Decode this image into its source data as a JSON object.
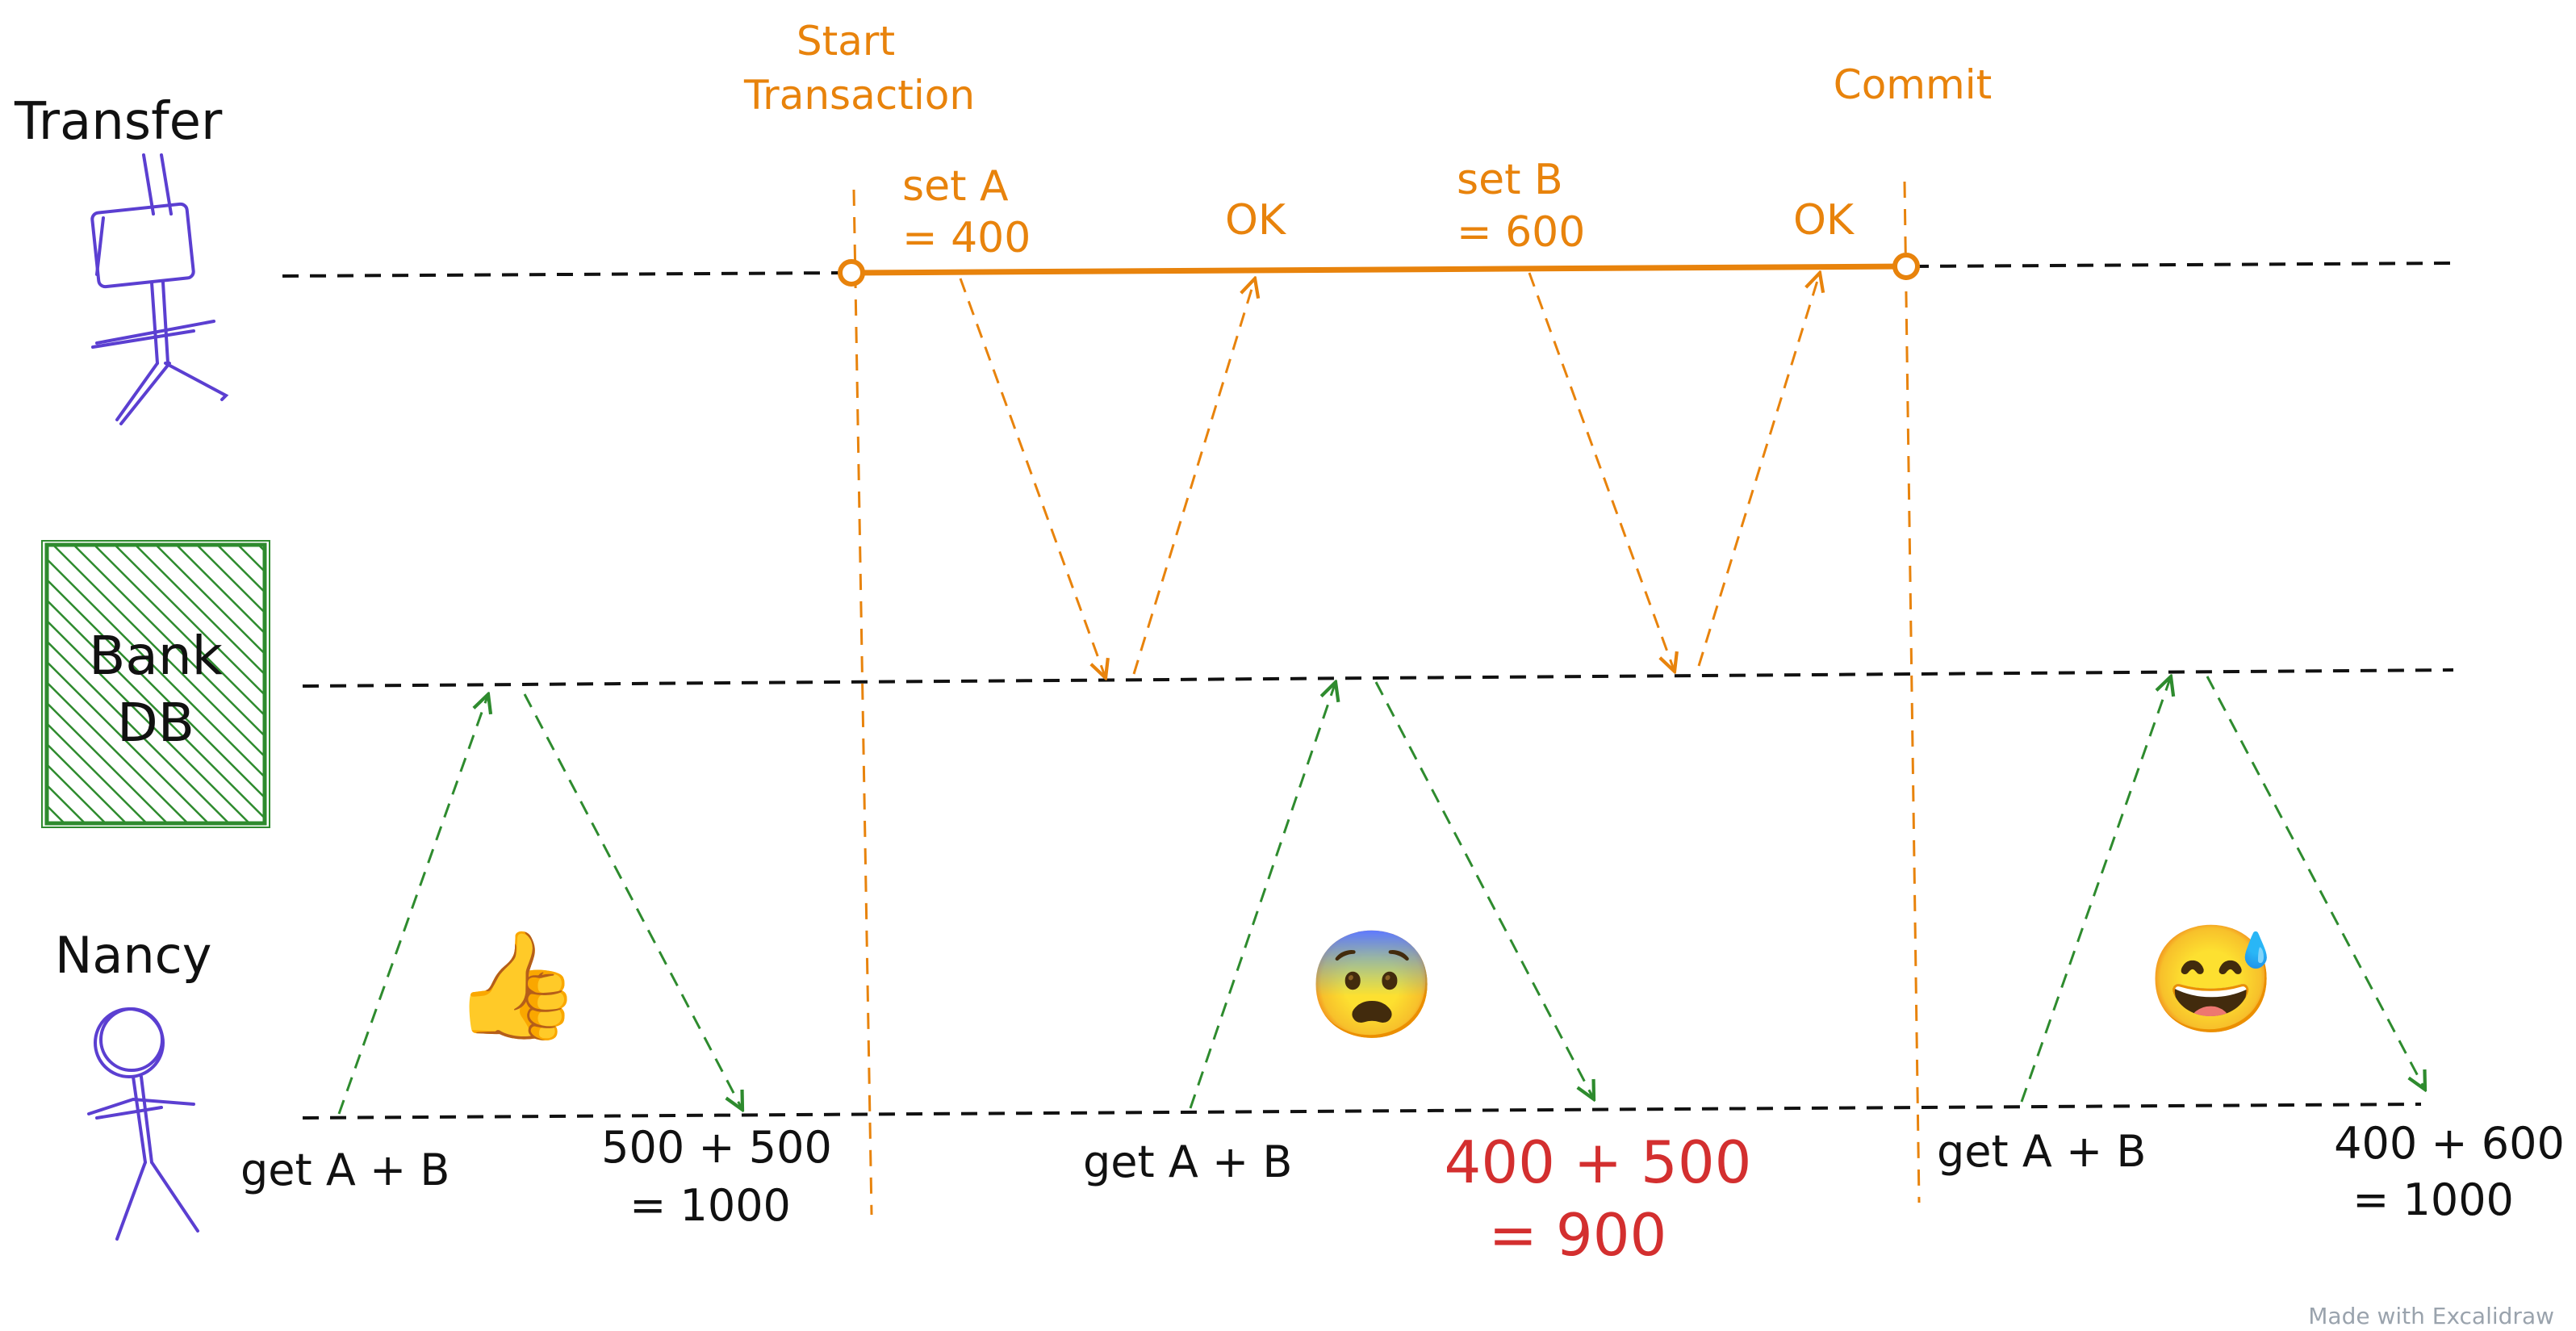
{
  "actors": {
    "transfer": {
      "label": "Transfer",
      "icon": "stick-figure-icon"
    },
    "bank_db": {
      "label_line1": "Bank",
      "label_line2": "DB",
      "icon": "database-box-icon"
    },
    "nancy": {
      "label": "Nancy",
      "icon": "stick-figure-icon"
    }
  },
  "transaction": {
    "start_line1": "Start",
    "start_line2": "Transaction",
    "commit": "Commit"
  },
  "operations": {
    "set_a_line1": "set A",
    "set_a_line2": "= 400",
    "ok_a": "OK",
    "set_b_line1": "set B",
    "set_b_line2": "= 600",
    "ok_b": "OK"
  },
  "reads": [
    {
      "request": "get A + B",
      "result_line1": "500 + 500",
      "result_line2": "= 1000",
      "emoji": "👍",
      "emoji_name": "thumbs-up-icon"
    },
    {
      "request": "get A + B",
      "result_line1": "400 + 500",
      "result_line2": "= 900",
      "emoji": "😨",
      "emoji_name": "fearful-face-icon"
    },
    {
      "request": "get A + B",
      "result_line1": "400 + 600",
      "result_line2": "= 1000",
      "emoji": "😅",
      "emoji_name": "sweat-smile-icon"
    }
  ],
  "footer": {
    "watermark": "Made with Excalidraw"
  },
  "colors": {
    "ink": "#111111",
    "orange": "#e8830c",
    "green": "#2e8b2e",
    "purple": "#5b3fd1",
    "red": "#d32f2f"
  }
}
